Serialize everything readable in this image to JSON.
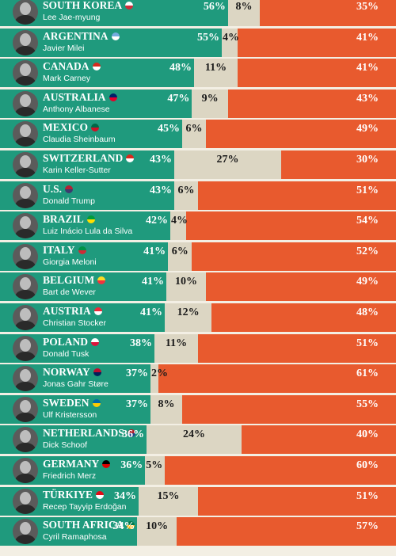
{
  "chart_data": {
    "type": "bar",
    "stacked": true,
    "orientation": "horizontal",
    "colors": {
      "approve": "#1f9a7d",
      "neutral": "#dcd6c3",
      "disapprove": "#e85a2e"
    },
    "rows": [
      {
        "country": "SOUTH KOREA",
        "leader": "Lee Jae-myung",
        "flag": [
          "#ffffff",
          "#cd2e3a"
        ],
        "approve": 56,
        "neutral": 8,
        "disapprove": 35
      },
      {
        "country": "ARGENTINA",
        "leader": "Javier Milei",
        "flag": [
          "#74acdf",
          "#ffffff"
        ],
        "approve": 55,
        "neutral": 4,
        "disapprove": 41
      },
      {
        "country": "CANADA",
        "leader": "Mark Carney",
        "flag": [
          "#d52b1e",
          "#ffffff"
        ],
        "approve": 48,
        "neutral": 11,
        "disapprove": 41
      },
      {
        "country": "AUSTRALIA",
        "leader": "Anthony Albanese",
        "flag": [
          "#012169",
          "#e4002b"
        ],
        "approve": 47,
        "neutral": 9,
        "disapprove": 43
      },
      {
        "country": "MEXICO",
        "leader": "Claudia Sheinbaum",
        "flag": [
          "#006847",
          "#ce1126"
        ],
        "approve": 45,
        "neutral": 6,
        "disapprove": 49
      },
      {
        "country": "SWITZERLAND",
        "leader": "Karin Keller-Sutter",
        "flag": [
          "#da291c",
          "#ffffff"
        ],
        "approve": 43,
        "neutral": 27,
        "disapprove": 30
      },
      {
        "country": "U.S.",
        "leader": "Donald Trump",
        "flag": [
          "#b22234",
          "#3c3b6e"
        ],
        "approve": 43,
        "neutral": 6,
        "disapprove": 51
      },
      {
        "country": "BRAZIL",
        "leader": "Luiz Inácio Lula da Silva",
        "flag": [
          "#009c3b",
          "#ffdf00"
        ],
        "approve": 42,
        "neutral": 4,
        "disapprove": 54
      },
      {
        "country": "ITALY",
        "leader": "Giorgia Meloni",
        "flag": [
          "#009246",
          "#ce2b37"
        ],
        "approve": 41,
        "neutral": 6,
        "disapprove": 52
      },
      {
        "country": "BELGIUM",
        "leader": "Bart de Wever",
        "flag": [
          "#fdda24",
          "#ef3340"
        ],
        "approve": 41,
        "neutral": 10,
        "disapprove": 49
      },
      {
        "country": "AUSTRIA",
        "leader": "Christian Stocker",
        "flag": [
          "#ed2939",
          "#ffffff"
        ],
        "approve": 41,
        "neutral": 12,
        "disapprove": 48
      },
      {
        "country": "POLAND",
        "leader": "Donald Tusk",
        "flag": [
          "#ffffff",
          "#dc143c"
        ],
        "approve": 38,
        "neutral": 11,
        "disapprove": 51
      },
      {
        "country": "NORWAY",
        "leader": "Jonas Gahr Støre",
        "flag": [
          "#ba0c2f",
          "#00205b"
        ],
        "approve": 37,
        "neutral": 2,
        "disapprove": 61
      },
      {
        "country": "SWEDEN",
        "leader": "Ulf Kristersson",
        "flag": [
          "#006aa7",
          "#fecc00"
        ],
        "approve": 37,
        "neutral": 8,
        "disapprove": 55
      },
      {
        "country": "NETHERLANDS",
        "leader": "Dick Schoof",
        "flag": [
          "#ae1c28",
          "#21468b"
        ],
        "approve": 36,
        "neutral": 24,
        "disapprove": 40
      },
      {
        "country": "GERMANY",
        "leader": "Friedrich Merz",
        "flag": [
          "#000000",
          "#dd0000"
        ],
        "approve": 36,
        "neutral": 5,
        "disapprove": 60
      },
      {
        "country": "TÜRKIYE",
        "leader": "Recep Tayyip Erdoğan",
        "flag": [
          "#e30a17",
          "#ffffff"
        ],
        "approve": 34,
        "neutral": 15,
        "disapprove": 51
      },
      {
        "country": "SOUTH AFRICA",
        "leader": "Cyril Ramaphosa",
        "flag": [
          "#007a4d",
          "#ffb612"
        ],
        "approve": 34,
        "neutral": 10,
        "disapprove": 57
      }
    ]
  }
}
